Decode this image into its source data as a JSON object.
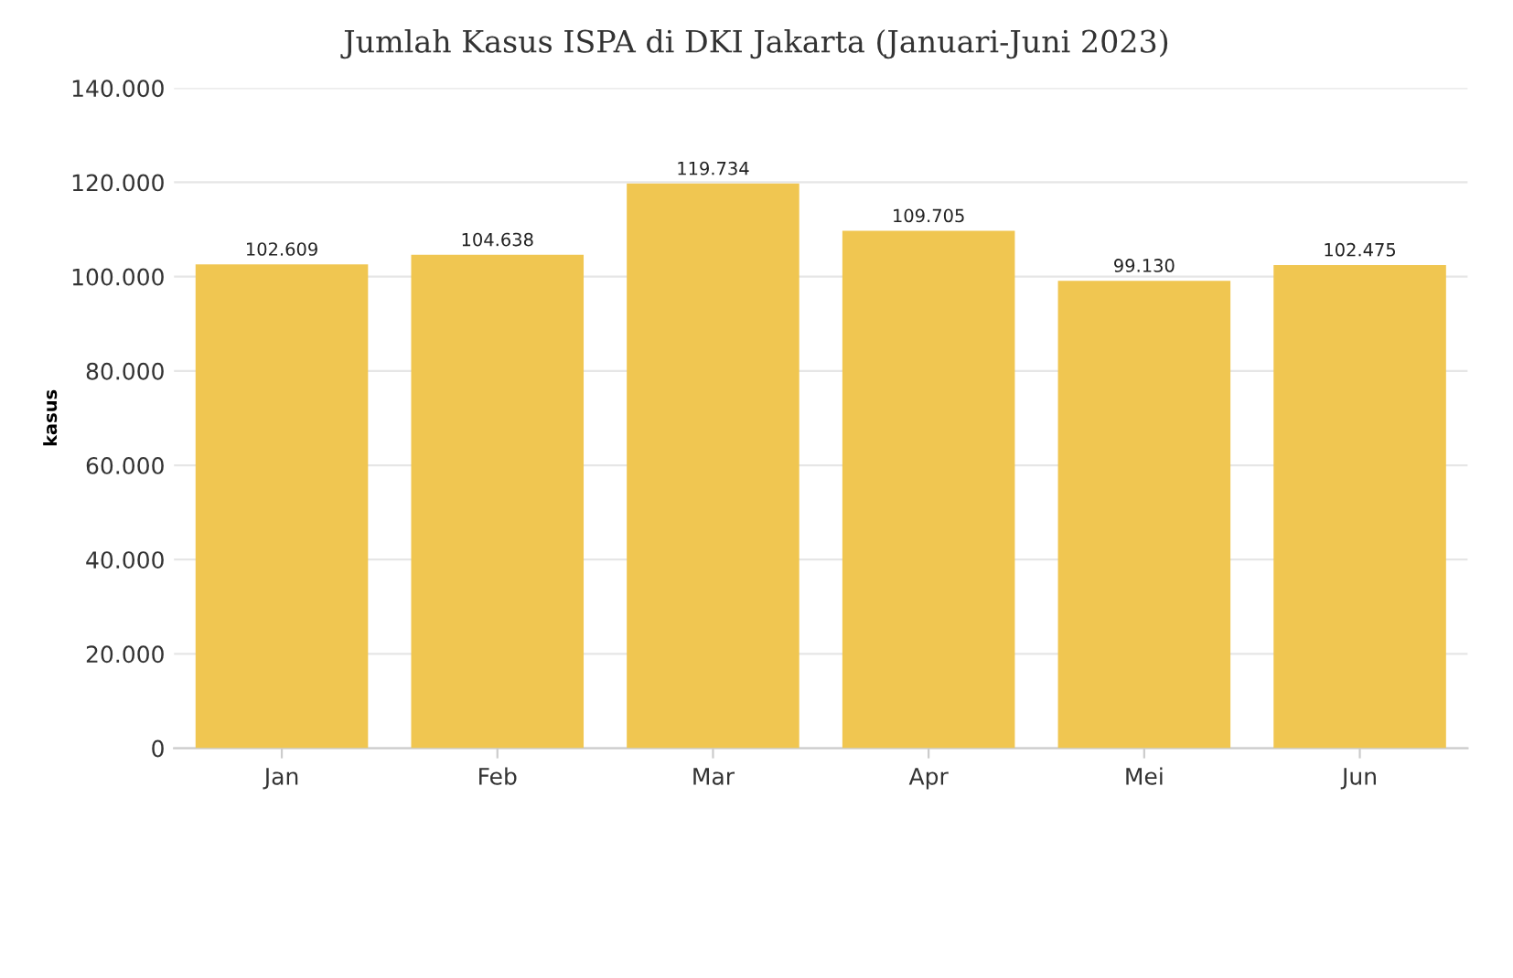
{
  "chart_data": {
    "type": "bar",
    "title": "Jumlah Kasus ISPA di DKI Jakarta (Januari-Juni 2023)",
    "ylabel": "kasus",
    "categories": [
      "Jan",
      "Feb",
      "Mar",
      "Apr",
      "Mei",
      "Jun"
    ],
    "values": [
      102609,
      104638,
      119734,
      109705,
      99130,
      102475
    ],
    "value_labels": [
      "102.609",
      "104.638",
      "119.734",
      "109.705",
      "99.130",
      "102.475"
    ],
    "color": "#f0c651",
    "ylim": [
      0,
      140000
    ],
    "yticks": [
      0,
      {
        "value": 20000,
        "label": "20.000"
      },
      {
        "value": 40000,
        "label": "40.000"
      },
      {
        "value": 60000,
        "label": "60.000"
      },
      {
        "value": 80000,
        "label": "80.000"
      },
      {
        "value": 100000,
        "label": "100.000"
      },
      {
        "value": 120000,
        "label": "120.000"
      },
      {
        "value": 140000,
        "label": "140.000"
      }
    ],
    "grid": "y"
  }
}
